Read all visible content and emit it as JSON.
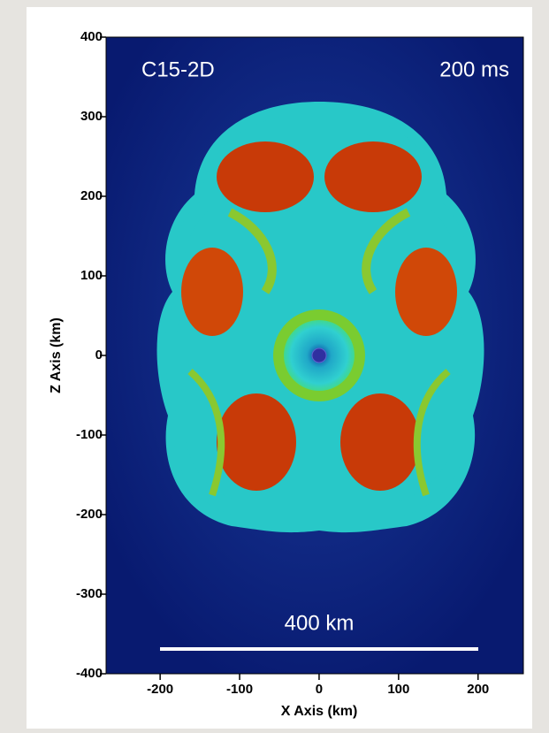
{
  "chart_data": {
    "type": "image",
    "annotations": [
      "C15-2D",
      "200 ms",
      "400 km"
    ],
    "x_label": "X Axis (km)",
    "y_label": "Z Axis (km)",
    "xlim": [
      -268,
      257
    ],
    "ylim": [
      -400,
      400
    ],
    "xticks": [
      -200,
      -100,
      0,
      100,
      200
    ],
    "yticks": [
      -400,
      -300,
      -200,
      -100,
      0,
      100,
      200,
      300,
      400
    ]
  }
}
